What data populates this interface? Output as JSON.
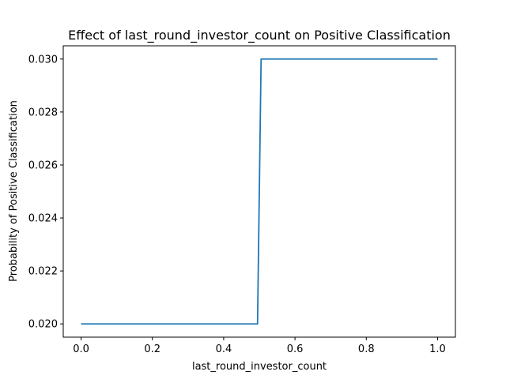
{
  "chart_data": {
    "type": "line",
    "title": "Effect of last_round_investor_count on Positive Classification",
    "xlabel": "last_round_investor_count",
    "ylabel": "Probability of Positive Classification",
    "xlim": [
      -0.05,
      1.05
    ],
    "ylim": [
      0.0195,
      0.0305
    ],
    "xticks": [
      0.0,
      0.2,
      0.4,
      0.6,
      0.8,
      1.0
    ],
    "xtick_labels": [
      "0.0",
      "0.2",
      "0.4",
      "0.6",
      "0.8",
      "1.0"
    ],
    "yticks": [
      0.02,
      0.022,
      0.024,
      0.026,
      0.028,
      0.03
    ],
    "ytick_labels": [
      "0.020",
      "0.022",
      "0.024",
      "0.026",
      "0.028",
      "0.030"
    ],
    "grid": false,
    "series": [
      {
        "color": "#1f77b4",
        "x": [
          0.0,
          0.495,
          0.505,
          1.0
        ],
        "y": [
          0.02,
          0.02,
          0.03,
          0.03
        ]
      }
    ]
  }
}
